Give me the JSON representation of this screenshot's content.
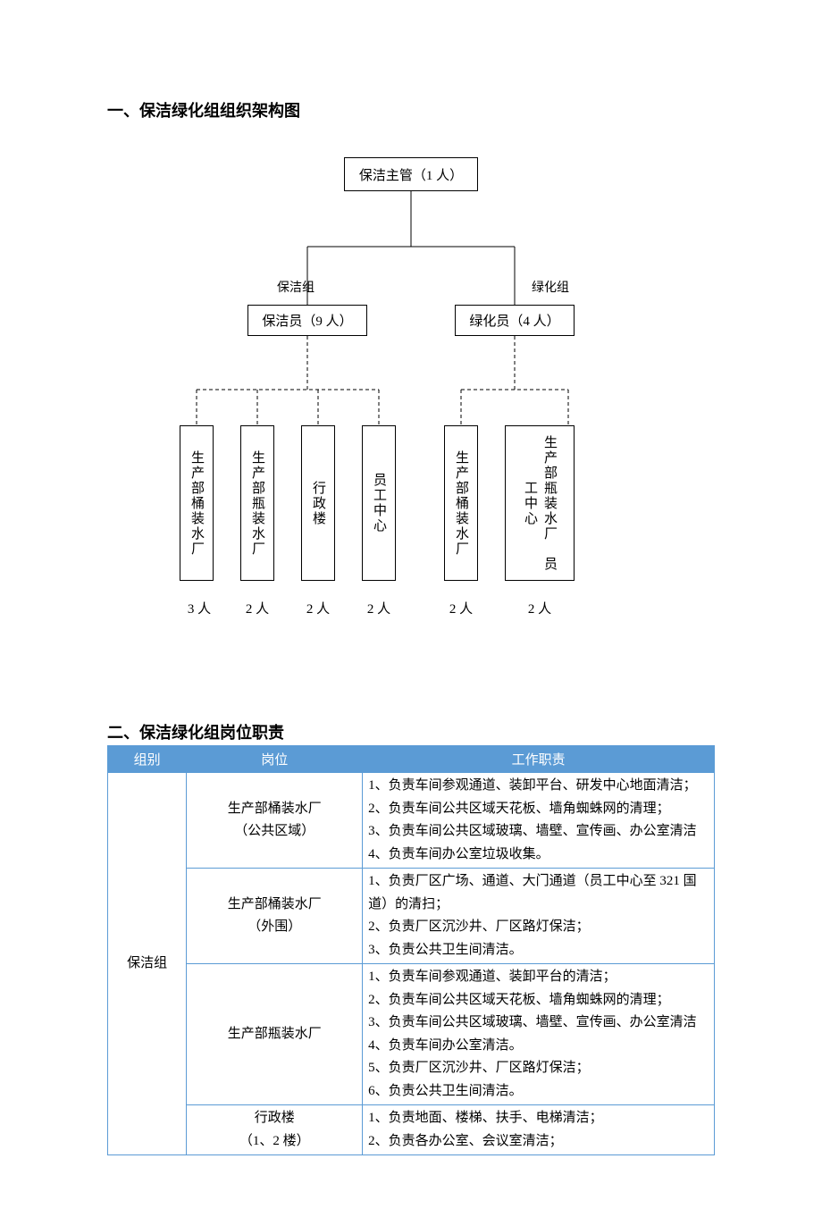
{
  "section1": {
    "heading": "一、保洁绿化组组织架构图"
  },
  "section2": {
    "heading": "二、保洁绿化组岗位职责"
  },
  "orgchart": {
    "root": "保洁主管（1 人）",
    "group_left_label": "保洁组",
    "group_right_label": "绿化组",
    "level2_left": "保洁员（9 人）",
    "level2_right": "绿化员（4 人）",
    "leaves": [
      {
        "label": "生产部桶装水厂",
        "count": "3 人"
      },
      {
        "label": "生产部瓶装水厂",
        "count": "2 人"
      },
      {
        "label": "行政楼",
        "count": "2 人"
      },
      {
        "label": "员工中心",
        "count": "2 人"
      },
      {
        "label": "生产部桶装水厂",
        "count": "2 人"
      },
      {
        "label": "生产部瓶装水厂　员工中心",
        "count": "2 人"
      }
    ],
    "style": {
      "border_color": "#000000",
      "text_color": "#000000",
      "font_size": 15,
      "dashed_pattern": "4,3"
    }
  },
  "table": {
    "columns": [
      "组别",
      "岗位",
      "工作职责"
    ],
    "group_label": "保洁组",
    "rows": [
      {
        "position": "生产部桶装水厂\n（公共区域）",
        "duties": [
          "1、负责车间参观通道、装卸平台、研发中心地面清洁；",
          "2、负责车间公共区域天花板、墙角蜘蛛网的清理；",
          "3、负责车间公共区域玻璃、墙壁、宣传画、办公室清洁",
          "4、负责车间办公室垃圾收集。"
        ]
      },
      {
        "position": "生产部桶装水厂\n（外围）",
        "duties": [
          "1、负责厂区广场、通道、大门通道（员工中心至 321 国道）的清扫；",
          "2、负责厂区沉沙井、厂区路灯保洁；",
          "3、负责公共卫生间清洁。"
        ]
      },
      {
        "position": "生产部瓶装水厂",
        "duties": [
          "1、负责车间参观通道、装卸平台的清洁；",
          "2、负责车间公共区域天花板、墙角蜘蛛网的清理；",
          "3、负责车间公共区域玻璃、墙壁、宣传画、办公室清洁",
          "4、负责车间办公室清洁。",
          "5、负责厂区沉沙井、厂区路灯保洁；",
          "6、负责公共卫生间清洁。"
        ]
      },
      {
        "position": "行政楼\n（1、2 楼）",
        "duties": [
          "1、负责地面、楼梯、扶手、电梯清洁；",
          "2、负责各办公室、会议室清洁；"
        ]
      }
    ],
    "style": {
      "header_bg": "#5b9bd5",
      "header_fg": "#ffffff",
      "border_color": "#5b9bd5",
      "col_widths_pct": [
        13,
        29,
        58
      ]
    }
  }
}
